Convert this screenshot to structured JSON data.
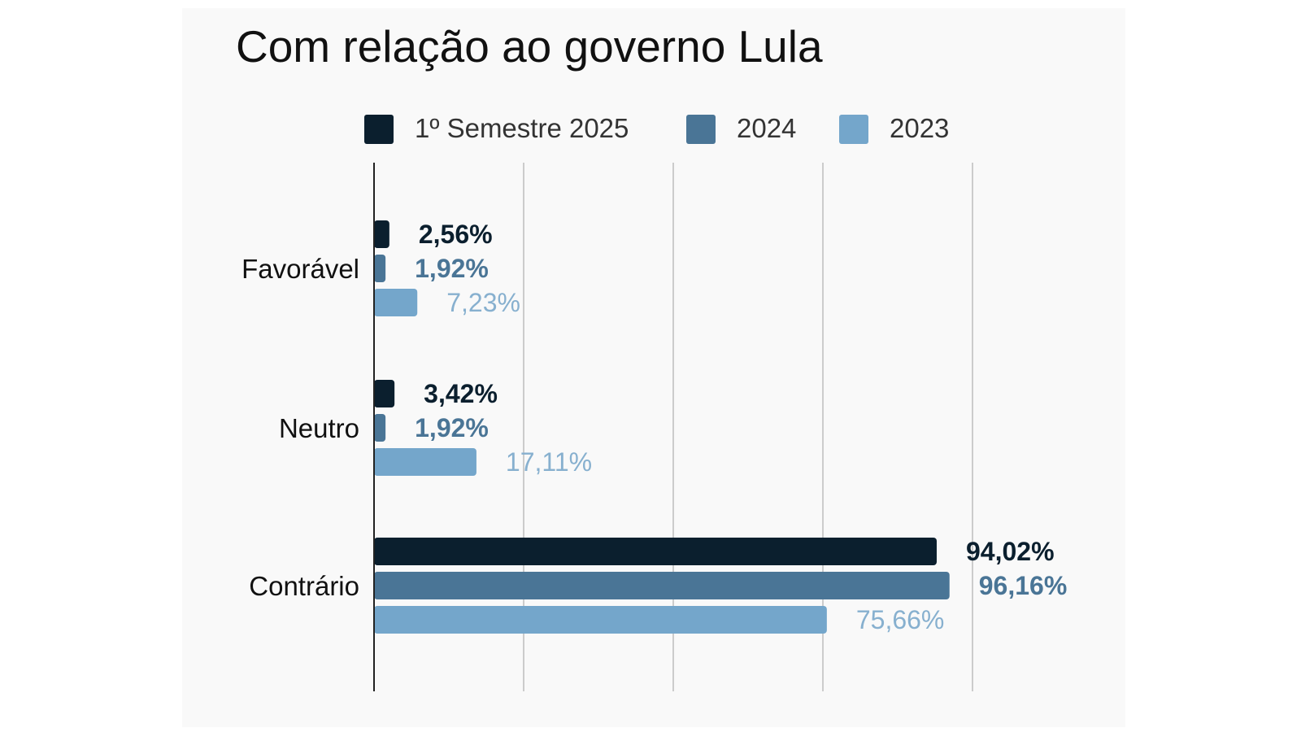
{
  "chart_data": {
    "type": "bar",
    "orientation": "horizontal",
    "title": "Com relação ao governo Lula",
    "categories": [
      "Favorável",
      "Neutro",
      "Contrário"
    ],
    "series": [
      {
        "name": "1º Semestre 2025",
        "color": "#0b1f2e",
        "values": [
          2.56,
          3.42,
          94.02
        ],
        "labels": [
          "2,56%",
          "3,42%",
          "94,02%"
        ],
        "label_bold": true
      },
      {
        "name": "2024",
        "color": "#4a7596",
        "values": [
          1.92,
          1.92,
          96.16
        ],
        "labels": [
          "1,92%",
          "1,92%",
          "96,16%"
        ],
        "label_bold": true
      },
      {
        "name": "2023",
        "color": "#74a6cb",
        "values": [
          7.23,
          17.11,
          75.66
        ],
        "labels": [
          "7,23%",
          "17,11%",
          "75,66%"
        ],
        "label_bold": false
      }
    ],
    "xlim": [
      0,
      100
    ],
    "grid": true,
    "x_tick_labels_shown": false,
    "legend_position": "top",
    "colors": {
      "background": "#f9f9f9",
      "grid": "#cccccc",
      "axis": "#222222",
      "label_2025": "#0b1f2e",
      "label_2024": "#4a7596",
      "label_2023": "#87b0cf"
    }
  }
}
